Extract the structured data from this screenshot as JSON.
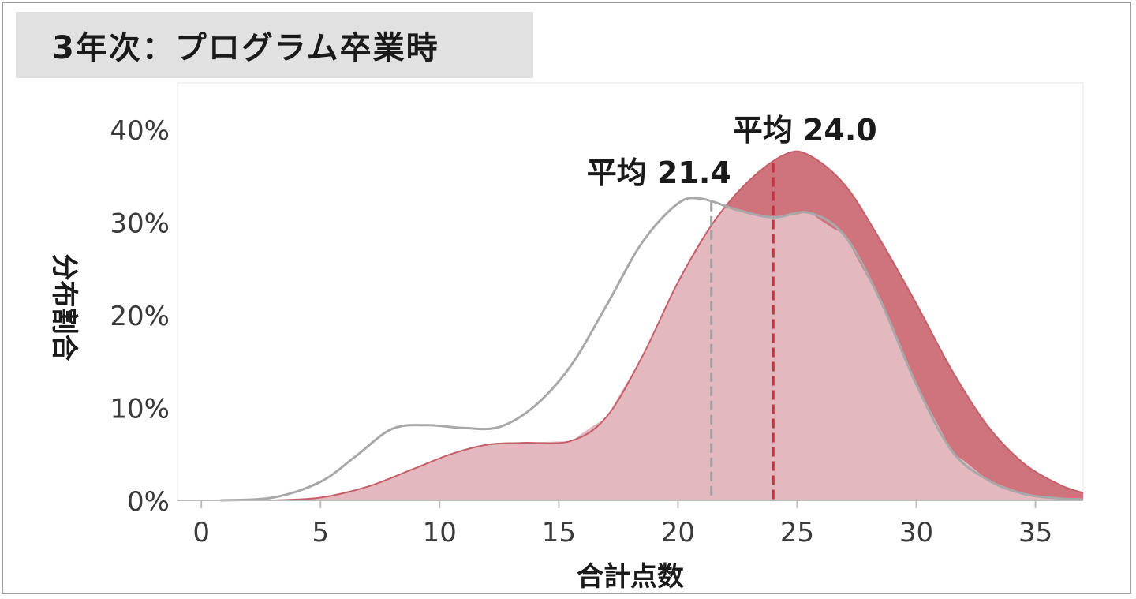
{
  "title": "3年次：プログラム卒業時",
  "chart_data": {
    "type": "area",
    "xlabel": "合計点数",
    "ylabel": "分布割合",
    "xlim": [
      -1,
      37
    ],
    "ylim": [
      0,
      45
    ],
    "x_ticks": [
      0,
      5,
      10,
      15,
      20,
      25,
      30,
      35
    ],
    "y_ticks": [
      0,
      10,
      20,
      30,
      40
    ],
    "y_tick_labels": [
      "0%",
      "10%",
      "20%",
      "30%",
      "40%"
    ],
    "grid": false,
    "legend": "none",
    "series": [
      {
        "color": "#a8a8a8",
        "style": "line",
        "x": [
          0.8,
          3,
          5,
          6.5,
          8,
          9.5,
          11,
          12.5,
          14,
          15.5,
          17,
          18.5,
          20,
          21,
          22.5,
          24,
          25.5,
          27,
          28.5,
          30,
          31.5,
          33,
          34.5,
          36,
          37
        ],
        "y": [
          0,
          0.3,
          2,
          4.8,
          7.7,
          8.1,
          7.8,
          7.9,
          10.2,
          14.5,
          21,
          27.8,
          32,
          32.5,
          31.3,
          30.5,
          31,
          28.5,
          21.5,
          12.5,
          5.3,
          2.2,
          0.7,
          0.2,
          0.1
        ],
        "mean": 21.4,
        "mean_label": "平均 21.4"
      },
      {
        "color": "#c55f69",
        "fill": "#e4b8bf",
        "style": "area",
        "x": [
          3,
          5,
          7,
          9,
          10.5,
          12,
          13.5,
          15.5,
          17,
          18.5,
          20,
          21.5,
          23,
          24.5,
          25.5,
          27,
          28.5,
          30,
          31.5,
          33,
          34.5,
          36,
          37
        ],
        "y": [
          0,
          0.3,
          1.5,
          3.5,
          5,
          6,
          6.2,
          6.4,
          9,
          15.5,
          23.5,
          30,
          34.5,
          37.3,
          37.2,
          34,
          28,
          21.2,
          14,
          8,
          4,
          1.7,
          0.8
        ],
        "mean": 24.0,
        "mean_label": "平均 24.0"
      }
    ]
  }
}
